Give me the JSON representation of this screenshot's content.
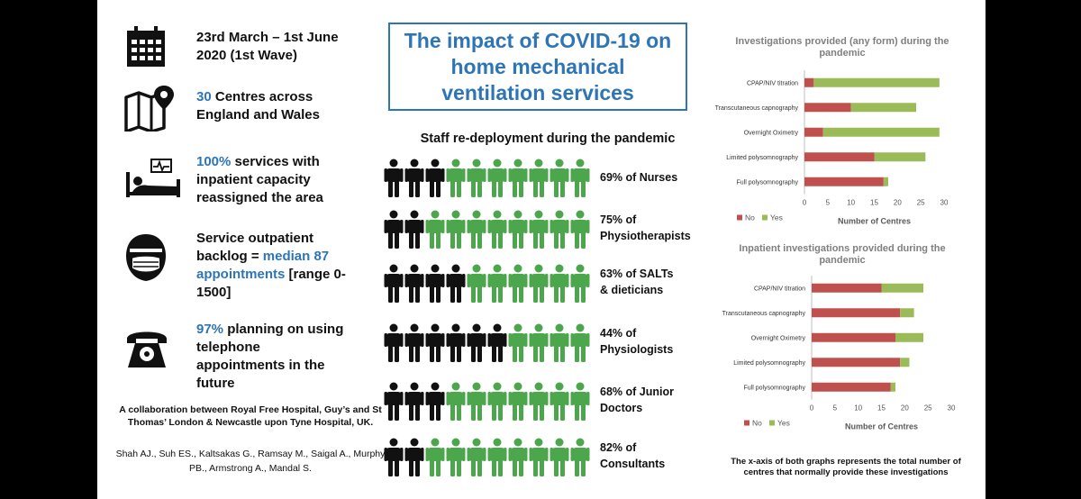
{
  "colors": {
    "accent_blue": "#2e75b6",
    "bar_no": "#c0504d",
    "bar_yes": "#9bbb59",
    "staff_black": "#111111",
    "staff_green": "#4ca64c"
  },
  "left": {
    "wave": {
      "date_line1": "23rd March – 1st June",
      "date_line2": "2020 (1st Wave)",
      "icon": "calendar-icon"
    },
    "centres": {
      "number": "30",
      "text_line1": "Centres across",
      "text_line2": "England and Wales",
      "icon": "map-pin-icon"
    },
    "inpatient": {
      "number": "100%",
      "text_line1": "services with",
      "text_line2": "inpatient capacity",
      "text_line3": "reassigned the area",
      "icon": "hospital-bed-icon"
    },
    "backlog": {
      "line1": "Service outpatient",
      "line2_prefix": "backlog = ",
      "line2_highlight": "median 87",
      "line3_highlight": "appointments",
      "line3_suffix": " [range 0-",
      "line4": "1500]",
      "icon": "face-mask-icon"
    },
    "telephone": {
      "number": "97%",
      "text_line1": "planning on using",
      "text_line2": "telephone",
      "text_line3": "appointments in the",
      "text_line4": "future",
      "icon": "telephone-icon"
    },
    "collaboration": "A collaboration between Royal Free Hospital, Guy’s and St Thomas’ London & Newcastle upon Tyne Hospital, UK.",
    "authors": "Shah AJ., Suh ES., Kaltsakas G., Ramsay M., Saigal A., Murphy PB., Armstrong A., Mandal S."
  },
  "title": "The impact of COVID-19 on home mechanical ventilation services",
  "staff": {
    "heading": "Staff re-deployment during the pandemic",
    "rows": [
      {
        "line1": "69% of Nurses",
        "line2": "",
        "black": 3,
        "green": 7
      },
      {
        "line1": "75% of",
        "line2": "Physiotherapists",
        "black": 2,
        "green": 8
      },
      {
        "line1": "63% of SALTs",
        "line2": "& dieticians",
        "black": 4,
        "green": 6
      },
      {
        "line1": "44% of",
        "line2": "Physiologists",
        "black": 6,
        "green": 4
      },
      {
        "line1": "68% of Junior",
        "line2": "Doctors",
        "black": 3,
        "green": 7
      },
      {
        "line1": "82% of",
        "line2": "Consultants",
        "black": 2,
        "green": 8
      }
    ]
  },
  "chart_data": [
    {
      "type": "bar",
      "orientation": "horizontal",
      "stacked": true,
      "title": "Investigations provided (any form) during the pandemic",
      "categories": [
        "CPAP/NIV titration",
        "Transcutaneous capnography",
        "Overnight Oximetry",
        "Limited polysomnography",
        "Full polysomnography"
      ],
      "series": [
        {
          "name": "No",
          "values": [
            2,
            10,
            4,
            15,
            17
          ]
        },
        {
          "name": "Yes",
          "values": [
            27,
            14,
            25,
            11,
            1
          ]
        }
      ],
      "xlabel": "Number of Centres",
      "xlim": [
        0,
        30
      ],
      "xticks": [
        "0",
        "5",
        "10",
        "15",
        "20",
        "25",
        "30"
      ],
      "legend": "bottom-left"
    },
    {
      "type": "bar",
      "orientation": "horizontal",
      "stacked": true,
      "title": "Inpatient investigations provided during the pandemic",
      "categories": [
        "CPAP/NIV titration",
        "Transcutaneous capnography",
        "Overnight Oximetry",
        "Limited polysomnography",
        "Full polysomnography"
      ],
      "series": [
        {
          "name": "No",
          "values": [
            15,
            19,
            18,
            19,
            17
          ]
        },
        {
          "name": "Yes",
          "values": [
            9,
            3,
            6,
            2,
            1
          ]
        }
      ],
      "xlabel": "Number of Centres",
      "xlim": [
        0,
        30
      ],
      "xticks": [
        "0",
        "5",
        "10",
        "15",
        "20",
        "25",
        "30"
      ],
      "legend": "bottom-left"
    }
  ],
  "note": "The x-axis of both graphs represents the total number of centres that normally provide these investigations"
}
